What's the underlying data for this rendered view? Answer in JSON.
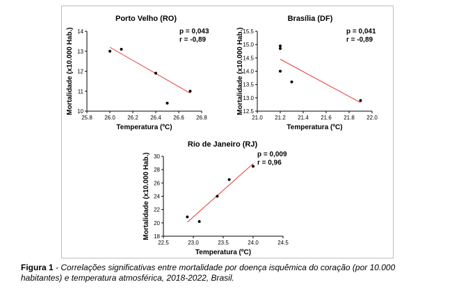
{
  "chart_data": [
    {
      "type": "scatter",
      "title": "Porto Velho (RO)",
      "stats": [
        "p = 0,043",
        "r = -0,89"
      ],
      "xlabel": "Temperatura (ºC)",
      "ylabel": "Mortalidade (x10.000 Hab.)",
      "xlim": [
        25.8,
        26.8
      ],
      "ylim": [
        10,
        14
      ],
      "xticks": [
        25.8,
        26.0,
        26.2,
        26.4,
        26.6,
        26.8
      ],
      "xtick_labels": [
        "25.8",
        "26.0",
        "26.2",
        "26.4",
        "26.6",
        "26.8"
      ],
      "yticks": [
        10,
        11,
        12,
        13,
        14
      ],
      "ytick_labels": [
        "10",
        "11",
        "12",
        "13",
        "14"
      ],
      "points": [
        {
          "x": 26.0,
          "y": 13.0
        },
        {
          "x": 26.1,
          "y": 13.1
        },
        {
          "x": 26.4,
          "y": 11.9
        },
        {
          "x": 26.5,
          "y": 10.4
        },
        {
          "x": 26.7,
          "y": 11.0
        }
      ],
      "trend": {
        "x": [
          26.0,
          26.7
        ],
        "y": [
          13.2,
          10.9
        ]
      }
    },
    {
      "type": "scatter",
      "title": "Brasília (DF)",
      "stats": [
        "p = 0,041",
        "r = -0,89"
      ],
      "xlabel": "Temperatura (ºC)",
      "ylabel": "Mortalidade (x10.000 Hab.)",
      "xlim": [
        21.0,
        22.0
      ],
      "ylim": [
        12.5,
        15.5
      ],
      "xticks": [
        21.0,
        21.2,
        21.4,
        21.6,
        21.8,
        22.0
      ],
      "xtick_labels": [
        "21.0",
        "21.2",
        "21.4",
        "21.6",
        "21.8",
        "22.0"
      ],
      "yticks": [
        12.5,
        13.0,
        13.5,
        14.0,
        14.5,
        15.0,
        15.5
      ],
      "ytick_labels": [
        "12.5",
        "13.0",
        "13.5",
        "14.0",
        "14.5",
        "15.0",
        "15.5"
      ],
      "points": [
        {
          "x": 21.2,
          "y": 14.95
        },
        {
          "x": 21.2,
          "y": 14.85
        },
        {
          "x": 21.2,
          "y": 14.0
        },
        {
          "x": 21.3,
          "y": 13.6
        },
        {
          "x": 21.9,
          "y": 12.9
        }
      ],
      "trend": {
        "x": [
          21.2,
          21.9
        ],
        "y": [
          14.45,
          12.82
        ]
      }
    },
    {
      "type": "scatter",
      "title": "Rio de Janeiro (RJ)",
      "stats": [
        "p = 0,009",
        "r = 0,96"
      ],
      "xlabel": "Temperatura (ºC)",
      "ylabel": "Mortalidade (x10.000 Hab.)",
      "xlim": [
        22.5,
        24.5
      ],
      "ylim": [
        18,
        30
      ],
      "xticks": [
        22.5,
        23.0,
        23.5,
        24.0,
        24.5
      ],
      "xtick_labels": [
        "22.5",
        "23.0",
        "23.5",
        "24.0",
        "24.5"
      ],
      "yticks": [
        18,
        20,
        22,
        24,
        26,
        28,
        30
      ],
      "ytick_labels": [
        "18",
        "20",
        "22",
        "24",
        "26",
        "28",
        "30"
      ],
      "points": [
        {
          "x": 22.9,
          "y": 20.9
        },
        {
          "x": 23.1,
          "y": 20.2
        },
        {
          "x": 23.4,
          "y": 24.0
        },
        {
          "x": 23.6,
          "y": 26.5
        },
        {
          "x": 24.0,
          "y": 28.5
        }
      ],
      "trend": {
        "x": [
          22.9,
          24.0
        ],
        "y": [
          20.1,
          28.9
        ]
      }
    }
  ],
  "colors": {
    "points": "#000000",
    "trend": "#e53935",
    "axes": "#000000"
  },
  "caption": {
    "lead": "Figura 1",
    "body": " - Correlações significativas entre mortalidade por doença isquêmica do coração (por 10.000 habitantes) e temperatura atmosférica, 2018-2022, Brasil."
  }
}
